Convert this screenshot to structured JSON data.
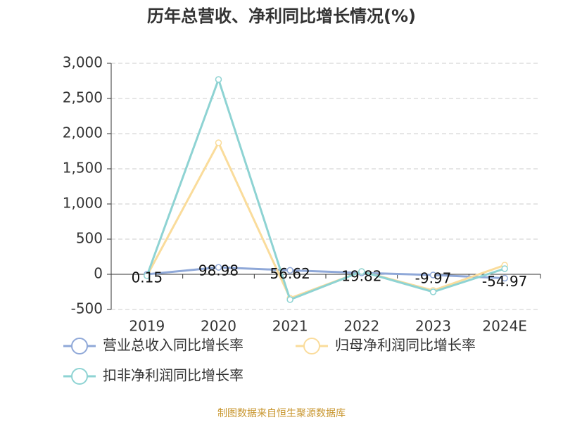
{
  "chart_data": {
    "type": "line",
    "title": "历年总营收、净利同比增长情况(%)",
    "categories": [
      "2019",
      "2020",
      "2021",
      "2022",
      "2023",
      "2024E"
    ],
    "series": [
      {
        "name": "营业总收入同比增长率",
        "color": "#8fa8d8",
        "values": [
          0.15,
          98.98,
          56.62,
          19.82,
          -9.97,
          -54.97
        ],
        "show_labels": true
      },
      {
        "name": "归母净利润同比增长率",
        "color": "#fadc9b",
        "values": [
          -20,
          1870,
          -340,
          40,
          -230,
          130
        ],
        "show_labels": false
      },
      {
        "name": "扣非净利润同比增长率",
        "color": "#8ed3d3",
        "values": [
          -20,
          2770,
          -360,
          40,
          -250,
          80
        ],
        "show_labels": false
      }
    ],
    "ylim": [
      -500,
      3000
    ],
    "yticks": [
      -500,
      0,
      500,
      {
        "value": 1000,
        "label": "1,000"
      },
      {
        "value": 1500,
        "label": "1,500"
      },
      {
        "value": 2000,
        "label": "2,000"
      },
      {
        "value": 2500,
        "label": "2,500"
      },
      {
        "value": 3000,
        "label": "3,000"
      }
    ],
    "grid": true,
    "source": "制图数据来自恒生聚源数据库"
  }
}
